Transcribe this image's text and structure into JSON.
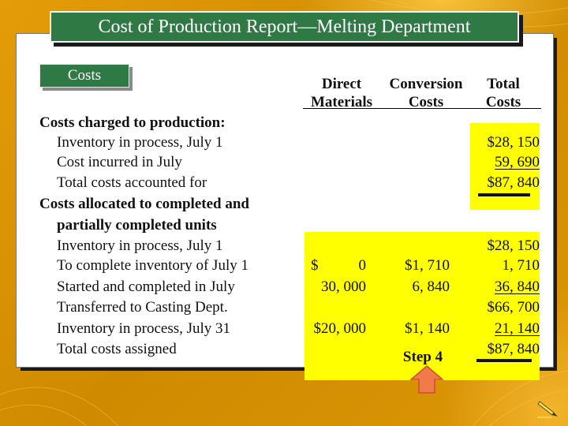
{
  "title": "Cost of Production Report—Melting Department",
  "tab_label": "Costs",
  "columns": {
    "direct_materials": [
      "Direct",
      "Materials"
    ],
    "conversion_costs": [
      "Conversion",
      "Costs"
    ],
    "total_costs": [
      "Total",
      "Costs"
    ]
  },
  "rows": [
    {
      "label": "Costs charged to production:",
      "style": "bold"
    },
    {
      "label": "Inventory in process, July 1",
      "style": "indent",
      "total": "$28, 150"
    },
    {
      "label": "Cost incurred in July",
      "style": "indent",
      "total": "59, 690"
    },
    {
      "label": "Total costs accounted for",
      "style": "indent",
      "total": "$87, 840"
    },
    {
      "label": "Costs allocated to completed and",
      "style": "bold"
    },
    {
      "label": "partially completed units",
      "style": "bold-indent"
    },
    {
      "label": "Inventory in process, July 1",
      "style": "indent",
      "total": "$28, 150"
    },
    {
      "label": "To complete inventory of July 1",
      "style": "indent",
      "dm_sign": "$",
      "dm": "0",
      "cc": "$1, 710",
      "total": "1, 710"
    },
    {
      "label": "Started and completed in July",
      "style": "indent",
      "dm": "30, 000",
      "cc": "6, 840",
      "total": "36, 840"
    },
    {
      "label": "Transferred to Casting Dept.",
      "style": "indent",
      "total": "$66, 700"
    },
    {
      "label": "Inventory in process, July 31",
      "style": "indent",
      "dm": "$20, 000",
      "cc": "$1, 140",
      "total": "21, 140"
    },
    {
      "label": "Total costs assigned",
      "style": "indent",
      "total": "$87, 840"
    }
  ],
  "step_label": "Step 4",
  "colors": {
    "background": "#d89200",
    "title_bar": "#2f7a44",
    "highlight": "#ffff00",
    "arrow": "#f07a4a"
  },
  "icons": [
    "up-arrow-icon",
    "pen-icon"
  ]
}
